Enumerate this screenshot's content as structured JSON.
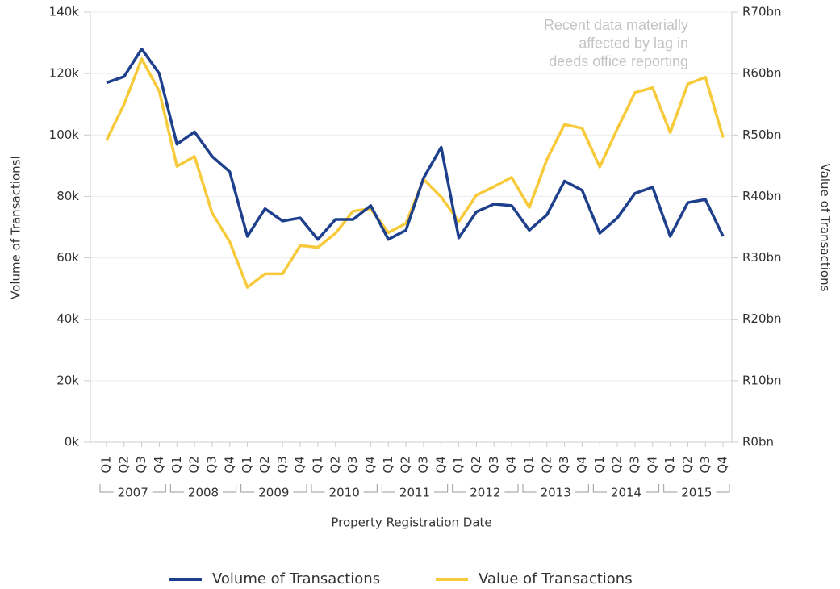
{
  "chart_data": {
    "type": "line",
    "annotation": [
      "Recent data materially",
      "affected by lag in",
      "deeds office reporting"
    ],
    "x_label": "Property Registration Date",
    "y_label": "Volume of TransactionsI",
    "y2_label": "Value of Transactions",
    "categories": [
      "Q1",
      "Q2",
      "Q3",
      "Q4",
      "Q1",
      "Q2",
      "Q3",
      "Q4",
      "Q1",
      "Q2",
      "Q3",
      "Q4",
      "Q1",
      "Q2",
      "Q3",
      "Q4",
      "Q1",
      "Q2",
      "Q3",
      "Q4",
      "Q1",
      "Q2",
      "Q3",
      "Q4",
      "Q1",
      "Q2",
      "Q3",
      "Q4",
      "Q1",
      "Q2",
      "Q3",
      "Q4",
      "Q1",
      "Q2",
      "Q3",
      "Q4"
    ],
    "years": [
      "2007",
      "2008",
      "2009",
      "2010",
      "2011",
      "2012",
      "2013",
      "2014",
      "2015"
    ],
    "series": [
      {
        "name": "Volume of Transactions",
        "color": "#1d3f8c",
        "values": [
          117000,
          119000,
          128000,
          120000,
          97000,
          101000,
          93000,
          88000,
          67000,
          76000,
          72000,
          73000,
          66000,
          72500,
          72500,
          77000,
          66000,
          69000,
          86000,
          96000,
          66500,
          75000,
          77500,
          77000,
          69000,
          74000,
          85000,
          82000,
          68000,
          73000,
          81000,
          83000,
          67000,
          78000,
          79000,
          67000
        ]
      },
      {
        "name": "Value of Transactions",
        "color": "#f7ca3b",
        "axis": "y2",
        "values": [
          49.1,
          55,
          62.4,
          57.1,
          44.9,
          46.5,
          37.3,
          32.6,
          25.2,
          27.4,
          27.4,
          32,
          31.7,
          34,
          37.6,
          38,
          34.1,
          35.6,
          42.8,
          39.9,
          35.9,
          40.2,
          41.6,
          43.1,
          38.2,
          46,
          51.7,
          51.1,
          44.8,
          51,
          56.9,
          57.7,
          50.4,
          58.3,
          59.4,
          49.6
        ]
      }
    ],
    "ylim": [
      0,
      140000
    ],
    "yticks": [
      {
        "value": 0,
        "label": "0k"
      },
      {
        "value": 20000,
        "label": "20k"
      },
      {
        "value": 40000,
        "label": "40k"
      },
      {
        "value": 60000,
        "label": "60k"
      },
      {
        "value": 80000,
        "label": "80k"
      },
      {
        "value": 100000,
        "label": "100k"
      },
      {
        "value": 120000,
        "label": "120k"
      },
      {
        "value": 140000,
        "label": "140k"
      }
    ],
    "y2lim": [
      0,
      70
    ],
    "y2ticks": [
      {
        "value": 0,
        "label": "R0bn"
      },
      {
        "value": 10,
        "label": "R10bn"
      },
      {
        "value": 20,
        "label": "R20bn"
      },
      {
        "value": 30,
        "label": "R30bn"
      },
      {
        "value": 40,
        "label": "R40bn"
      },
      {
        "value": 50,
        "label": "R50bn"
      },
      {
        "value": 60,
        "label": "R60bn"
      },
      {
        "value": 70,
        "label": "R70bn"
      }
    ],
    "grid": true
  }
}
